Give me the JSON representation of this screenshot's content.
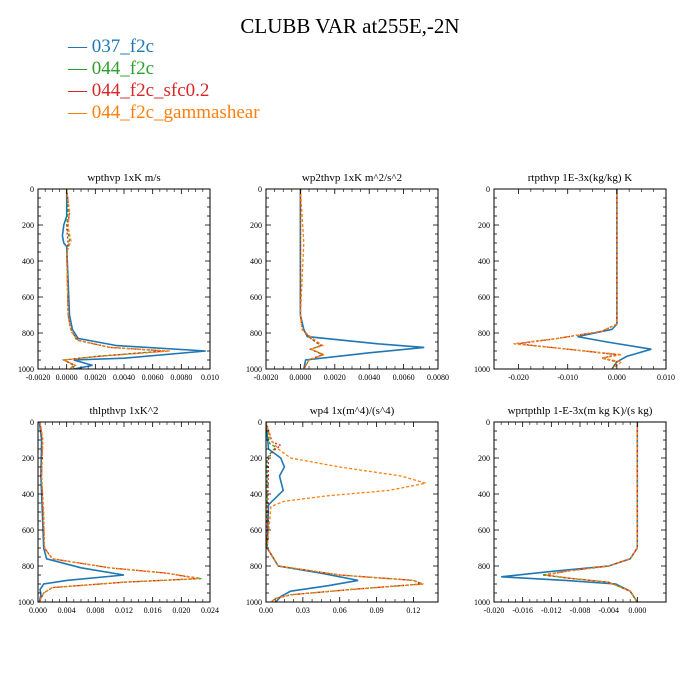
{
  "title": "CLUBB VAR at255E,-2N",
  "legend": [
    {
      "label": "037_f2c",
      "color": "#1f77b4"
    },
    {
      "label": "044_f2c",
      "color": "#2ca02c"
    },
    {
      "label": "044_f2c_sfc0.2",
      "color": "#d62728"
    },
    {
      "label": "044_f2c_gammashear",
      "color": "#ff7f0e"
    }
  ],
  "chart_data": [
    {
      "type": "line",
      "title": "wpthvp  1xK m/s",
      "xlim": [
        -0.002,
        0.01
      ],
      "xticks": [
        "-0.0020",
        "0.0000",
        "0.0020",
        "0.0040",
        "0.0060",
        "0.0080",
        "0.010"
      ],
      "ylim": [
        1000,
        0
      ],
      "yticks": [
        "0",
        "200",
        "400",
        "600",
        "800",
        "1000"
      ],
      "series": [
        {
          "name": "037_f2c",
          "x": [
            0.0,
            0.0,
            -0.0002,
            -0.0003,
            -0.0002,
            0.0,
            0.0002,
            0.0004,
            0.0008,
            0.0035,
            0.0097,
            0.004,
            0.0005,
            0.0018,
            0.0005
          ],
          "y": [
            0,
            150,
            200,
            260,
            300,
            320,
            700,
            780,
            830,
            870,
            900,
            940,
            950,
            980,
            1000
          ]
        },
        {
          "name": "044_f2c",
          "x": [
            0.0,
            0.0001,
            0.0,
            0.0002,
            0.0001,
            0.0,
            0.0001,
            0.0003,
            0.0007,
            0.003,
            0.0068,
            0.002,
            -0.0002,
            0.0005,
            0.0002
          ],
          "y": [
            0,
            120,
            200,
            280,
            330,
            350,
            700,
            780,
            840,
            880,
            900,
            930,
            950,
            980,
            1000
          ]
        },
        {
          "name": "044_f2c_sfc0.2",
          "x": [
            0.0,
            0.0002,
            0.0,
            0.0001,
            0.0,
            0.0001,
            0.0003,
            0.0008,
            0.003,
            0.007,
            0.0022,
            -0.0002,
            0.0006,
            0.0002
          ],
          "y": [
            0,
            140,
            220,
            300,
            350,
            700,
            790,
            840,
            880,
            900,
            930,
            950,
            980,
            1000
          ]
        },
        {
          "name": "044_f2c_gammashear",
          "x": [
            0.0,
            0.0002,
            0.0001,
            0.0003,
            0.0,
            0.0001,
            0.0003,
            0.0008,
            0.003,
            0.0072,
            0.0022,
            -0.0002,
            0.0006,
            0.0002
          ],
          "y": [
            0,
            130,
            210,
            290,
            350,
            700,
            790,
            840,
            880,
            900,
            930,
            950,
            980,
            1000
          ]
        }
      ]
    },
    {
      "type": "line",
      "title": "wp2thvp  1xK m^2/s^2",
      "xlim": [
        -0.002,
        0.008
      ],
      "xticks": [
        "-0.0020",
        "0.0000",
        "0.0020",
        "0.0040",
        "0.0060",
        "0.0080"
      ],
      "ylim": [
        1000,
        0
      ],
      "yticks": [
        "0",
        "200",
        "400",
        "600",
        "800",
        "1000"
      ],
      "series": [
        {
          "name": "037_f2c",
          "x": [
            0.0,
            0.0,
            0.0002,
            0.0004,
            0.0045,
            0.0072,
            0.004,
            0.0003,
            0.0002
          ],
          "y": [
            0,
            700,
            780,
            820,
            860,
            880,
            910,
            950,
            1000
          ]
        },
        {
          "name": "044_f2c",
          "x": [
            0.0,
            0.0,
            0.0001,
            0.0006,
            0.0012,
            0.0006,
            0.0013,
            0.0005,
            0.0002
          ],
          "y": [
            0,
            700,
            780,
            830,
            870,
            890,
            920,
            950,
            1000
          ]
        },
        {
          "name": "044_f2c_sfc0.2",
          "x": [
            0.0,
            0.0,
            0.0001,
            0.0006,
            0.0012,
            0.0006,
            0.0013,
            0.0005,
            0.0002
          ],
          "y": [
            0,
            700,
            780,
            830,
            870,
            890,
            920,
            950,
            1000
          ]
        },
        {
          "name": "044_f2c_gammashear",
          "x": [
            0.0,
            0.0002,
            0.0,
            0.0001,
            0.0007,
            0.0013,
            0.0006,
            0.0014,
            0.0005,
            0.0002
          ],
          "y": [
            0,
            300,
            700,
            780,
            830,
            870,
            890,
            920,
            950,
            1000
          ]
        }
      ]
    },
    {
      "type": "line",
      "title": "rtpthvp  1E-3x(kg/kg) K",
      "xlim": [
        -0.025,
        0.01
      ],
      "xticks": [
        "-0.020",
        "-0.010",
        "0.000",
        "0.010"
      ],
      "ylim": [
        1000,
        0
      ],
      "yticks": [
        "0",
        "200",
        "400",
        "600",
        "800",
        "1000"
      ],
      "series": [
        {
          "name": "037_f2c",
          "x": [
            0.0,
            0.0,
            -0.001,
            -0.008,
            -0.002,
            0.007,
            0.002,
            0.0,
            -0.001
          ],
          "y": [
            0,
            750,
            780,
            820,
            850,
            890,
            930,
            960,
            1000
          ]
        },
        {
          "name": "044_f2c",
          "x": [
            0.0,
            0.0,
            -0.003,
            -0.012,
            -0.021,
            -0.01,
            0.0,
            -0.003,
            0.0,
            -0.001
          ],
          "y": [
            0,
            750,
            790,
            830,
            860,
            890,
            920,
            940,
            960,
            1000
          ]
        },
        {
          "name": "044_f2c_sfc0.2",
          "x": [
            0.0,
            0.0,
            -0.003,
            -0.012,
            -0.02,
            -0.01,
            0.0,
            -0.003,
            0.0,
            -0.001
          ],
          "y": [
            0,
            750,
            790,
            830,
            860,
            890,
            920,
            940,
            960,
            1000
          ]
        },
        {
          "name": "044_f2c_gammashear",
          "x": [
            0.0,
            0.0,
            -0.003,
            -0.012,
            -0.021,
            -0.01,
            0.001,
            -0.003,
            0.001,
            -0.001
          ],
          "y": [
            0,
            750,
            790,
            830,
            860,
            890,
            920,
            940,
            960,
            1000
          ]
        }
      ]
    },
    {
      "type": "line",
      "title": "thlpthvp  1xK^2",
      "xlim": [
        0.0,
        0.024
      ],
      "xticks": [
        "0.000",
        "0.004",
        "0.008",
        "0.012",
        "0.016",
        "0.020",
        "0.024"
      ],
      "ylim": [
        1000,
        0
      ],
      "yticks": [
        "0",
        "200",
        "400",
        "600",
        "800",
        "1000"
      ],
      "series": [
        {
          "name": "037_f2c",
          "x": [
            0.0002,
            0.0005,
            0.0004,
            0.0006,
            0.0008,
            0.0012,
            0.006,
            0.012,
            0.004,
            0.0008,
            0.0003,
            0.0004,
            0.0002
          ],
          "y": [
            0,
            100,
            300,
            500,
            700,
            760,
            810,
            850,
            880,
            900,
            930,
            960,
            1000
          ]
        },
        {
          "name": "044_f2c",
          "x": [
            0.0003,
            0.0006,
            0.0005,
            0.0007,
            0.0009,
            0.002,
            0.01,
            0.018,
            0.0228,
            0.012,
            0.002,
            0.0008,
            0.0004,
            0.0002
          ],
          "y": [
            0,
            100,
            300,
            500,
            700,
            760,
            810,
            840,
            870,
            890,
            920,
            950,
            980,
            1000
          ]
        },
        {
          "name": "044_f2c_sfc0.2",
          "x": [
            0.0003,
            0.0006,
            0.0005,
            0.0007,
            0.0009,
            0.002,
            0.01,
            0.018,
            0.0222,
            0.012,
            0.002,
            0.0008,
            0.0004,
            0.0002
          ],
          "y": [
            0,
            100,
            300,
            500,
            700,
            760,
            810,
            840,
            870,
            890,
            920,
            950,
            980,
            1000
          ]
        },
        {
          "name": "044_f2c_gammashear",
          "x": [
            0.0003,
            0.0007,
            0.0005,
            0.0008,
            0.0009,
            0.002,
            0.01,
            0.018,
            0.0225,
            0.012,
            0.002,
            0.0008,
            0.0004,
            0.0002
          ],
          "y": [
            0,
            100,
            300,
            500,
            700,
            760,
            810,
            840,
            870,
            890,
            920,
            950,
            980,
            1000
          ]
        }
      ]
    },
    {
      "type": "line",
      "title": "wp4  1x(m^4)/(s^4)",
      "xlim": [
        0.0,
        0.14
      ],
      "xticks": [
        "0.00",
        "0.03",
        "0.06",
        "0.09",
        "0.12"
      ],
      "ylim": [
        1000,
        0
      ],
      "yticks": [
        "0",
        "200",
        "400",
        "600",
        "800",
        "1000"
      ],
      "series": [
        {
          "name": "037_f2c",
          "x": [
            0.0,
            0.002,
            0.012,
            0.015,
            0.011,
            0.014,
            0.002,
            0.001,
            0.01,
            0.045,
            0.075,
            0.05,
            0.02,
            0.012,
            0.008
          ],
          "y": [
            0,
            150,
            200,
            250,
            300,
            380,
            460,
            700,
            800,
            840,
            880,
            910,
            940,
            970,
            1000
          ]
        },
        {
          "name": "044_f2c",
          "x": [
            0.0,
            0.003,
            0.008,
            0.004,
            0.001,
            0.001,
            0.01,
            0.06,
            0.12,
            0.128,
            0.07,
            0.02,
            0.008,
            0.004
          ],
          "y": [
            0,
            120,
            140,
            170,
            200,
            700,
            800,
            850,
            880,
            900,
            930,
            960,
            980,
            1000
          ]
        },
        {
          "name": "044_f2c_sfc0.2",
          "x": [
            0.0,
            0.005,
            0.012,
            0.006,
            0.002,
            0.001,
            0.01,
            0.06,
            0.12,
            0.126,
            0.07,
            0.02,
            0.008,
            0.004
          ],
          "y": [
            0,
            110,
            130,
            160,
            200,
            700,
            800,
            850,
            880,
            900,
            930,
            960,
            980,
            1000
          ]
        },
        {
          "name": "044_f2c_gammashear",
          "x": [
            0.0,
            0.004,
            0.01,
            0.02,
            0.06,
            0.11,
            0.13,
            0.1,
            0.05,
            0.015,
            0.004,
            0.001,
            0.01,
            0.06,
            0.12,
            0.128,
            0.07,
            0.02,
            0.008,
            0.004
          ],
          "y": [
            0,
            100,
            150,
            200,
            250,
            300,
            340,
            380,
            410,
            440,
            470,
            700,
            800,
            850,
            880,
            900,
            930,
            960,
            980,
            1000
          ]
        }
      ]
    },
    {
      "type": "line",
      "title": "wprtpthlp  1-E-3x(m kg K)/(s kg)",
      "xlim": [
        -0.02,
        0.004
      ],
      "xticks": [
        "-0.020",
        "-0.016",
        "-0.012",
        "-0.008",
        "-0.004",
        "0.000"
      ],
      "ylim": [
        1000,
        0
      ],
      "yticks": [
        "0",
        "200",
        "400",
        "600",
        "800",
        "1000"
      ],
      "series": [
        {
          "name": "037_f2c",
          "x": [
            0.0,
            0.0,
            -0.001,
            -0.004,
            -0.012,
            -0.019,
            -0.01,
            -0.003,
            -0.001,
            0.0
          ],
          "y": [
            0,
            700,
            760,
            800,
            830,
            860,
            880,
            900,
            940,
            1000
          ]
        },
        {
          "name": "044_f2c",
          "x": [
            0.0,
            0.0,
            -0.001,
            -0.004,
            -0.01,
            -0.0133,
            -0.009,
            -0.004,
            -0.001,
            0.0
          ],
          "y": [
            0,
            700,
            760,
            800,
            830,
            850,
            870,
            890,
            940,
            1000
          ]
        },
        {
          "name": "044_f2c_sfc0.2",
          "x": [
            0.0,
            0.0,
            -0.001,
            -0.004,
            -0.01,
            -0.0128,
            -0.009,
            -0.004,
            -0.001,
            0.0
          ],
          "y": [
            0,
            700,
            760,
            800,
            830,
            850,
            870,
            890,
            940,
            1000
          ]
        },
        {
          "name": "044_f2c_gammashear",
          "x": [
            0.0,
            0.0,
            -0.001,
            -0.004,
            -0.01,
            -0.0128,
            -0.009,
            -0.004,
            -0.001,
            0.0
          ],
          "y": [
            0,
            700,
            760,
            800,
            830,
            850,
            870,
            890,
            940,
            1000
          ]
        }
      ]
    }
  ]
}
